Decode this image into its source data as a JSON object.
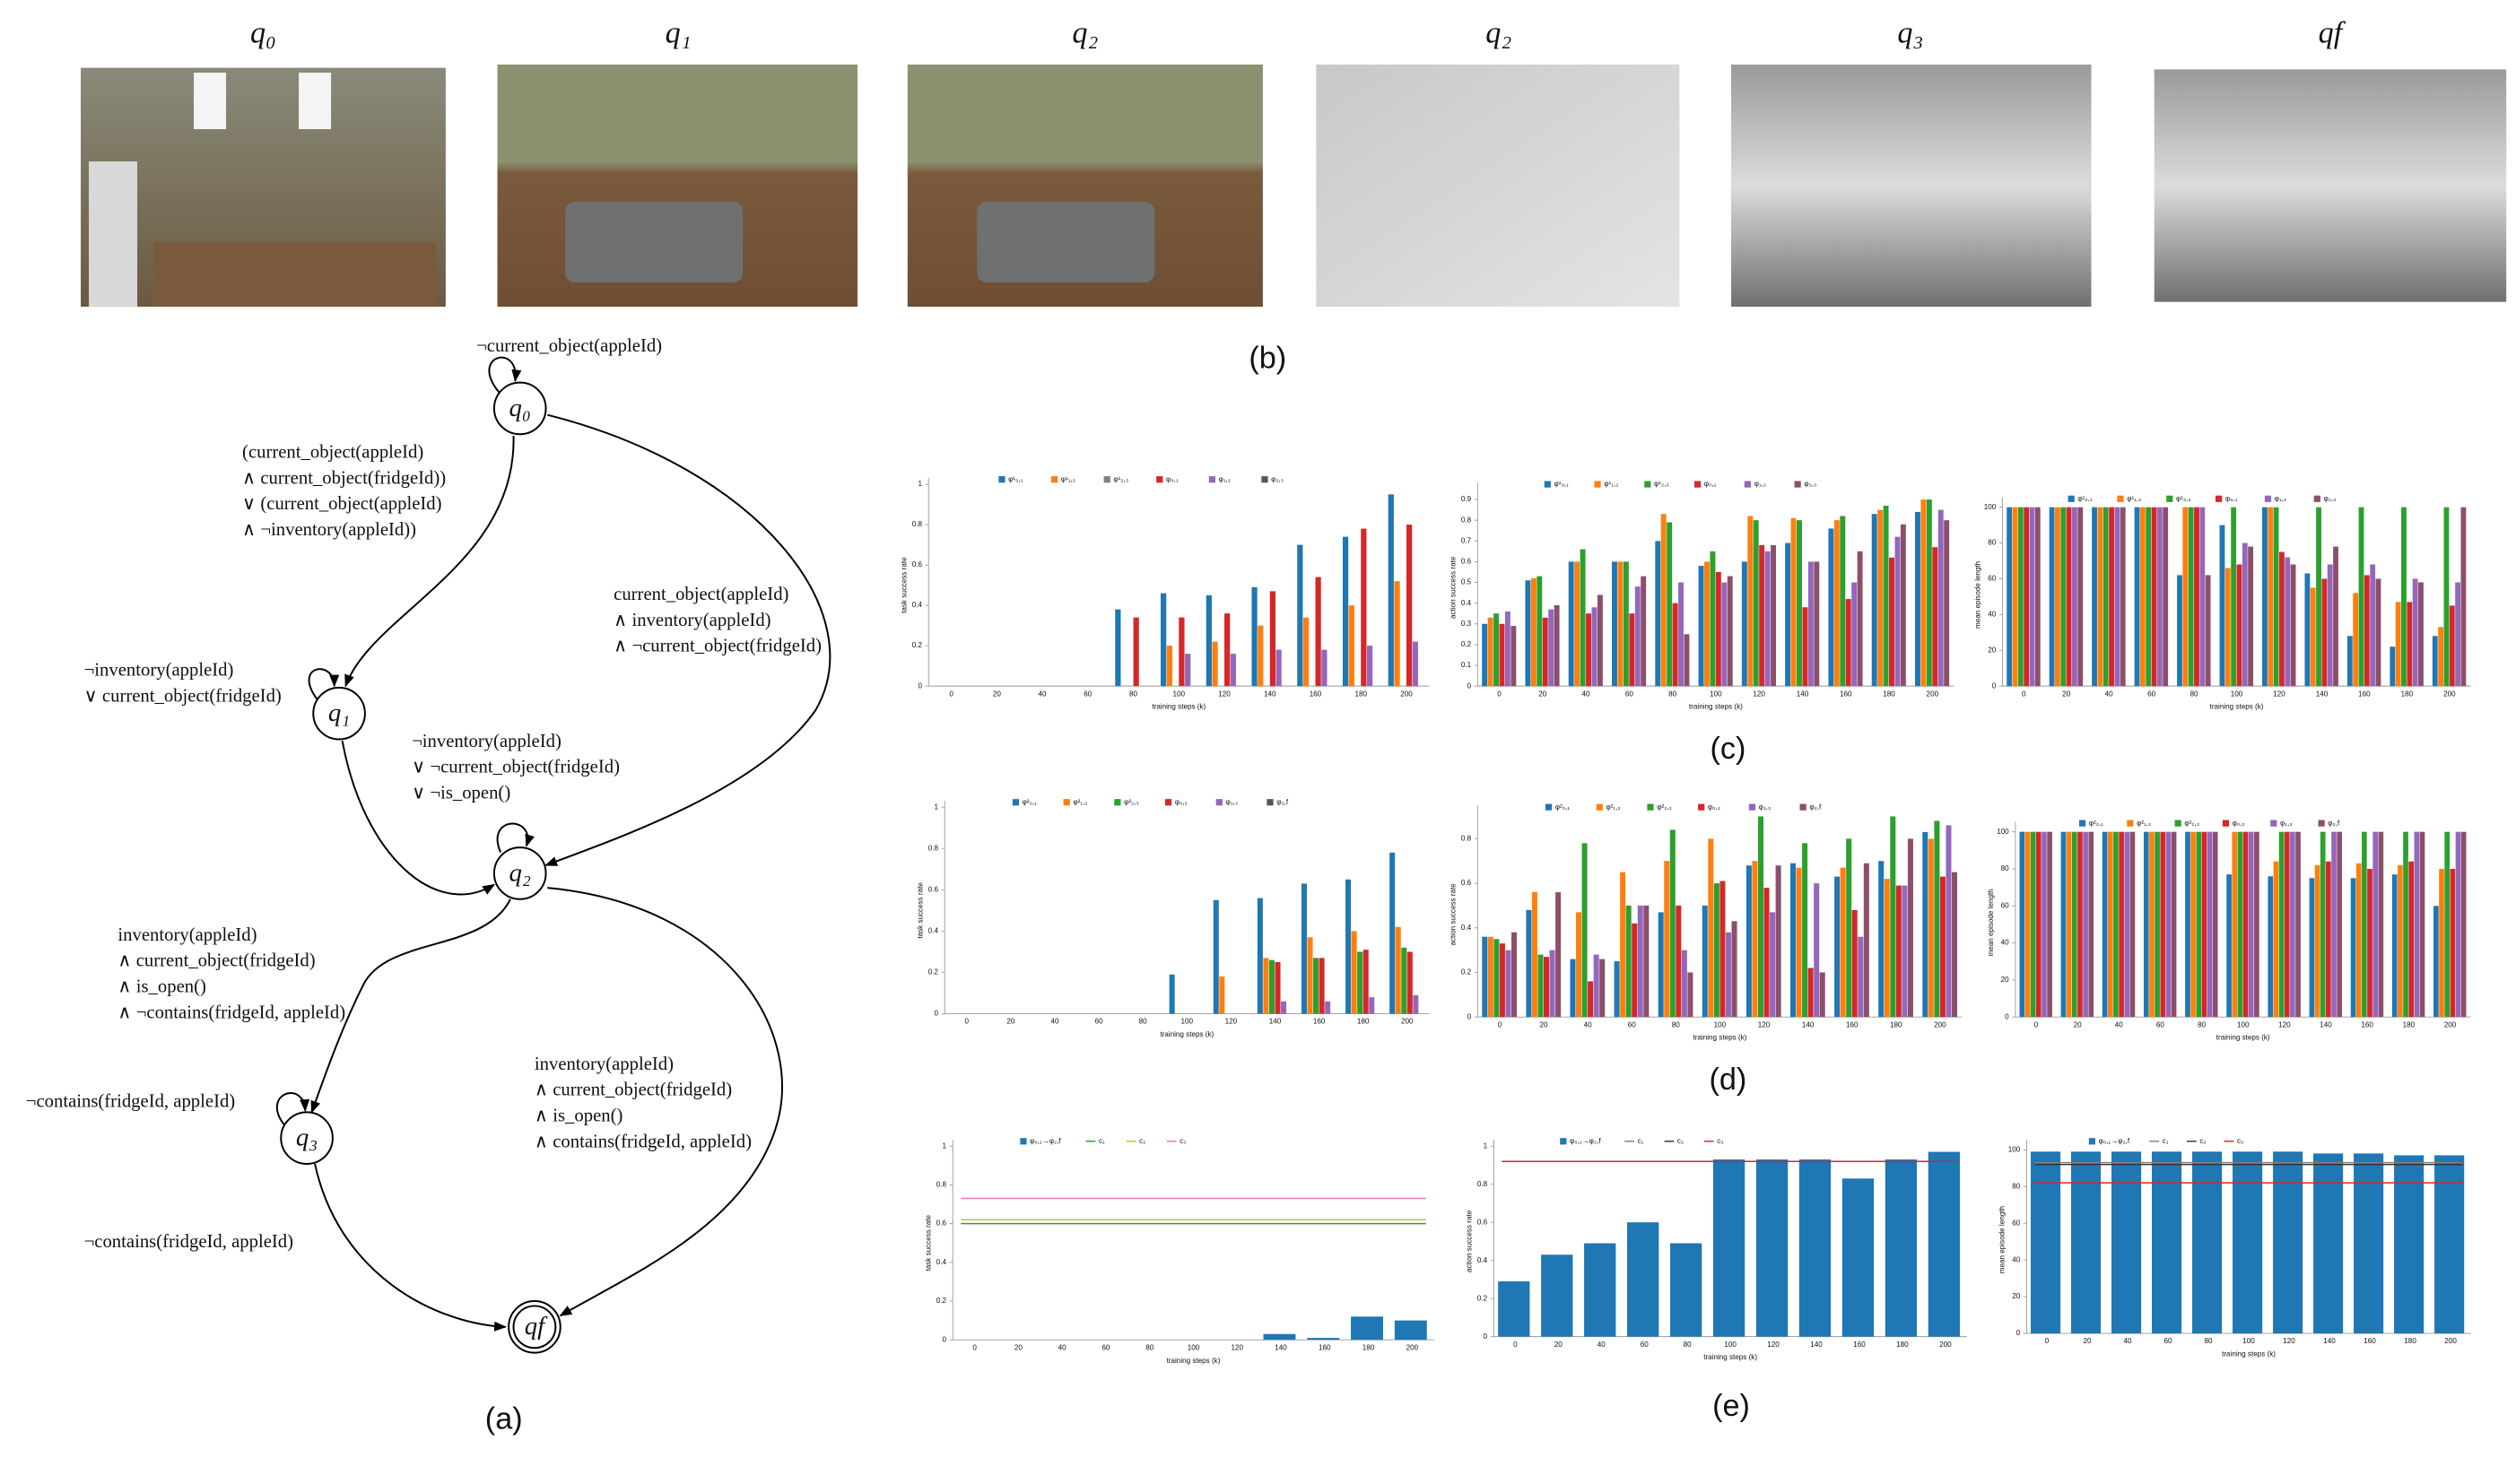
{
  "images": {
    "labels": [
      "q₀",
      "q₁",
      "q₂",
      "q₂",
      "q₃",
      "qf"
    ],
    "caption": "(b)"
  },
  "diagram": {
    "caption": "(a)",
    "nodes": [
      {
        "label": "q₀"
      },
      {
        "label": "q₁"
      },
      {
        "label": "q₂"
      },
      {
        "label": "q₃"
      },
      {
        "label": "qf"
      }
    ],
    "edges": [
      {
        "label": [
          "¬current_object(appleId)"
        ]
      },
      {
        "label": [
          "(current_object(appleId)",
          "∧ current_object(fridgeId))",
          "∨ (current_object(appleId)",
          "∧ ¬inventory(appleId))"
        ]
      },
      {
        "label": [
          "current_object(appleId)",
          "∧ inventory(appleId)",
          "∧ ¬current_object(fridgeId)"
        ]
      },
      {
        "label": [
          "¬inventory(appleId)",
          "∨ current_object(fridgeId)"
        ]
      },
      {
        "label": [
          "¬inventory(appleId)",
          "∨ ¬current_object(fridgeId)",
          "∨ ¬is_open()"
        ]
      },
      {
        "label": [
          "inventory(appleId)",
          "∧ current_object(fridgeId)",
          "∧ is_open()",
          "∧ ¬contains(fridgeId, appleId)"
        ]
      },
      {
        "label": [
          "¬contains(fridgeId, appleId)"
        ]
      },
      {
        "label": [
          "inventory(appleId)",
          "∧ current_object(fridgeId)",
          "∧ is_open()",
          "∧ contains(fridgeId, appleId)"
        ]
      },
      {
        "label": [
          "¬contains(fridgeId, appleId)"
        ]
      }
    ]
  },
  "captions": {
    "c": "(c)",
    "d": "(d)",
    "e": "(e)"
  },
  "chart_data": [
    {
      "type": "bar",
      "ylabel": "task success rate",
      "xlabel": "training steps (k)",
      "categories": [
        "0",
        "20",
        "40",
        "60",
        "80",
        "100",
        "120",
        "140",
        "160",
        "180",
        "200"
      ],
      "ylim": [
        0,
        1
      ],
      "yticks": [
        0,
        0.2,
        0.4,
        0.6,
        0.8,
        1
      ],
      "series": [
        {
          "name": "φ¹₀,₁",
          "color": "#1f77b4",
          "values": [
            0,
            0,
            0,
            0,
            0.38,
            0.46,
            0.45,
            0.49,
            0.7,
            0.74,
            0.95
          ]
        },
        {
          "name": "φ¹₁,₂",
          "color": "#ff7f0e",
          "values": [
            0,
            0,
            0,
            0,
            0,
            0.2,
            0.22,
            0.3,
            0.34,
            0.4,
            0.52
          ]
        },
        {
          "name": "φ¹₂,₃",
          "color": "#7f7f7f",
          "values": [
            0,
            0,
            0,
            0,
            0,
            0,
            0,
            0,
            0,
            0,
            0
          ]
        },
        {
          "name": "φ₀,₁",
          "color": "#d62728",
          "values": [
            0,
            0,
            0,
            0,
            0.34,
            0.34,
            0.36,
            0.47,
            0.54,
            0.78,
            0.8
          ]
        },
        {
          "name": "φ₁,₂",
          "color": "#9467bd",
          "values": [
            0,
            0,
            0,
            0,
            0,
            0.16,
            0.16,
            0.18,
            0.18,
            0.2,
            0.22
          ]
        },
        {
          "name": "φ₂,₃",
          "color": "#555555",
          "values": [
            0,
            0,
            0,
            0,
            0,
            0,
            0,
            0,
            0,
            0,
            0
          ]
        }
      ]
    },
    {
      "type": "bar",
      "ylabel": "action success rate",
      "xlabel": "training steps (k)",
      "categories": [
        "0",
        "20",
        "40",
        "60",
        "80",
        "100",
        "120",
        "140",
        "160",
        "180",
        "200"
      ],
      "ylim": [
        0,
        0.95
      ],
      "yticks": [
        0,
        0.1,
        0.2,
        0.3,
        0.4,
        0.5,
        0.6,
        0.7,
        0.8,
        0.9
      ],
      "series": [
        {
          "name": "φ¹₀,₁",
          "color": "#1f77b4",
          "values": [
            0.3,
            0.51,
            0.6,
            0.6,
            0.7,
            0.58,
            0.6,
            0.69,
            0.76,
            0.83,
            0.84
          ]
        },
        {
          "name": "φ¹₁,₂",
          "color": "#ff7f0e",
          "values": [
            0.33,
            0.52,
            0.6,
            0.6,
            0.83,
            0.6,
            0.82,
            0.81,
            0.8,
            0.85,
            0.9
          ]
        },
        {
          "name": "φ¹₂,₃",
          "color": "#2ca02c",
          "values": [
            0.35,
            0.53,
            0.66,
            0.6,
            0.79,
            0.65,
            0.8,
            0.8,
            0.82,
            0.87,
            0.9
          ]
        },
        {
          "name": "φ₀,₁",
          "color": "#d62728",
          "values": [
            0.3,
            0.33,
            0.35,
            0.35,
            0.4,
            0.55,
            0.68,
            0.38,
            0.42,
            0.62,
            0.67
          ]
        },
        {
          "name": "φ₁,₂",
          "color": "#9467bd",
          "values": [
            0.36,
            0.37,
            0.38,
            0.48,
            0.5,
            0.5,
            0.65,
            0.6,
            0.5,
            0.72,
            0.85
          ]
        },
        {
          "name": "φ₂,₃",
          "color": "#8c4f6b",
          "values": [
            0.29,
            0.39,
            0.44,
            0.53,
            0.25,
            0.53,
            0.68,
            0.6,
            0.65,
            0.78,
            0.8
          ]
        }
      ]
    },
    {
      "type": "bar",
      "ylabel": "mean episode length",
      "xlabel": "training steps (k)",
      "categories": [
        "0",
        "20",
        "40",
        "60",
        "80",
        "100",
        "120",
        "140",
        "160",
        "180",
        "200"
      ],
      "ylim": [
        0,
        102
      ],
      "yticks": [
        0,
        20,
        40,
        60,
        80,
        100
      ],
      "series": [
        {
          "name": "φ¹₀,₁",
          "color": "#1f77b4",
          "values": [
            100,
            100,
            100,
            100,
            62,
            90,
            100,
            63,
            28,
            22,
            28
          ]
        },
        {
          "name": "φ¹₁,₂",
          "color": "#ff7f0e",
          "values": [
            100,
            100,
            100,
            100,
            100,
            66,
            100,
            55,
            52,
            47,
            33
          ]
        },
        {
          "name": "φ¹₂,₃",
          "color": "#2ca02c",
          "values": [
            100,
            100,
            100,
            100,
            100,
            100,
            100,
            100,
            100,
            100,
            100
          ]
        },
        {
          "name": "φ₀,₁",
          "color": "#d62728",
          "values": [
            100,
            100,
            100,
            100,
            100,
            68,
            75,
            60,
            62,
            47,
            45
          ]
        },
        {
          "name": "φ₁,₂",
          "color": "#9467bd",
          "values": [
            100,
            100,
            100,
            100,
            100,
            80,
            72,
            68,
            68,
            60,
            58
          ]
        },
        {
          "name": "φ₂,₃",
          "color": "#8c4f6b",
          "values": [
            100,
            100,
            100,
            100,
            62,
            78,
            68,
            78,
            60,
            58,
            100
          ]
        }
      ]
    },
    {
      "type": "bar",
      "ylabel": "task success rate",
      "xlabel": "training steps (k)",
      "categories": [
        "0",
        "20",
        "40",
        "60",
        "80",
        "100",
        "120",
        "140",
        "160",
        "180",
        "200"
      ],
      "ylim": [
        0,
        1
      ],
      "yticks": [
        0,
        0.2,
        0.4,
        0.6,
        0.8,
        1
      ],
      "series": [
        {
          "name": "φ²₀,₁",
          "color": "#1f77b4",
          "values": [
            0,
            0,
            0,
            0,
            0,
            0.19,
            0.55,
            0.56,
            0.63,
            0.65,
            0.78
          ]
        },
        {
          "name": "φ²₁,₂",
          "color": "#ff7f0e",
          "values": [
            0,
            0,
            0,
            0,
            0,
            0,
            0.18,
            0.27,
            0.37,
            0.4,
            0.42
          ]
        },
        {
          "name": "φ²₂,₃",
          "color": "#2ca02c",
          "values": [
            0,
            0,
            0,
            0,
            0,
            0,
            0,
            0.26,
            0.27,
            0.3,
            0.32
          ]
        },
        {
          "name": "φ₀,₂",
          "color": "#d62728",
          "values": [
            0,
            0,
            0,
            0,
            0,
            0,
            0,
            0.25,
            0.27,
            0.31,
            0.3
          ]
        },
        {
          "name": "φ₁,₃",
          "color": "#9467bd",
          "values": [
            0,
            0,
            0,
            0,
            0,
            0,
            0,
            0.06,
            0.06,
            0.08,
            0.09
          ]
        },
        {
          "name": "φ₂,f",
          "color": "#555555",
          "values": [
            0,
            0,
            0,
            0,
            0,
            0,
            0,
            0,
            0,
            0,
            0
          ]
        }
      ]
    },
    {
      "type": "bar",
      "ylabel": "action success rate",
      "xlabel": "training steps (k)",
      "categories": [
        "0",
        "20",
        "40",
        "60",
        "80",
        "100",
        "120",
        "140",
        "160",
        "180",
        "200"
      ],
      "ylim": [
        0,
        0.92
      ],
      "yticks": [
        0,
        0.2,
        0.4,
        0.6,
        0.8
      ],
      "series": [
        {
          "name": "φ²₀,₁",
          "color": "#1f77b4",
          "values": [
            0.36,
            0.48,
            0.26,
            0.25,
            0.47,
            0.5,
            0.68,
            0.69,
            0.63,
            0.7,
            0.83
          ]
        },
        {
          "name": "φ²₁,₂",
          "color": "#ff7f0e",
          "values": [
            0.36,
            0.56,
            0.47,
            0.65,
            0.7,
            0.8,
            0.7,
            0.67,
            0.67,
            0.62,
            0.8
          ]
        },
        {
          "name": "φ²₂,₃",
          "color": "#2ca02c",
          "values": [
            0.35,
            0.28,
            0.78,
            0.5,
            0.84,
            0.6,
            0.9,
            0.78,
            0.8,
            0.9,
            0.88
          ]
        },
        {
          "name": "φ₀,₂",
          "color": "#d62728",
          "values": [
            0.33,
            0.27,
            0.16,
            0.42,
            0.5,
            0.61,
            0.58,
            0.22,
            0.48,
            0.59,
            0.63
          ]
        },
        {
          "name": "φ₁,₃",
          "color": "#9467bd",
          "values": [
            0.3,
            0.3,
            0.28,
            0.5,
            0.3,
            0.38,
            0.47,
            0.6,
            0.36,
            0.59,
            0.86
          ]
        },
        {
          "name": "φ₂,f",
          "color": "#8c4f6b",
          "values": [
            0.38,
            0.56,
            0.26,
            0.5,
            0.2,
            0.43,
            0.68,
            0.2,
            0.69,
            0.8,
            0.65
          ]
        }
      ]
    },
    {
      "type": "bar",
      "ylabel": "mean episode length",
      "xlabel": "training steps (k)",
      "categories": [
        "0",
        "20",
        "40",
        "60",
        "80",
        "100",
        "120",
        "140",
        "160",
        "180",
        "200"
      ],
      "ylim": [
        0,
        102
      ],
      "yticks": [
        0,
        20,
        40,
        60,
        80,
        100
      ],
      "series": [
        {
          "name": "φ²₀,₁",
          "color": "#1f77b4",
          "values": [
            100,
            100,
            100,
            100,
            100,
            77,
            76,
            75,
            75,
            77,
            60
          ]
        },
        {
          "name": "φ²₁,₂",
          "color": "#ff7f0e",
          "values": [
            100,
            100,
            100,
            100,
            100,
            100,
            84,
            82,
            83,
            82,
            80
          ]
        },
        {
          "name": "φ²₂,₃",
          "color": "#2ca02c",
          "values": [
            100,
            100,
            100,
            100,
            100,
            100,
            100,
            100,
            100,
            100,
            100
          ]
        },
        {
          "name": "φ₀,₂",
          "color": "#d62728",
          "values": [
            100,
            100,
            100,
            100,
            100,
            100,
            100,
            84,
            80,
            84,
            80
          ]
        },
        {
          "name": "φ₁,₃",
          "color": "#9467bd",
          "values": [
            100,
            100,
            100,
            100,
            100,
            100,
            100,
            100,
            100,
            100,
            100
          ]
        },
        {
          "name": "φ₂,f",
          "color": "#8c4f6b",
          "values": [
            100,
            100,
            100,
            100,
            100,
            100,
            100,
            100,
            100,
            100,
            100
          ]
        }
      ]
    },
    {
      "type": "bar",
      "ylabel": "task success rate",
      "xlabel": "training steps (k)",
      "categories": [
        "0",
        "20",
        "40",
        "60",
        "80",
        "100",
        "120",
        "140",
        "160",
        "180",
        "200"
      ],
      "ylim": [
        0,
        1
      ],
      "yticks": [
        0,
        0.2,
        0.4,
        0.6,
        0.8,
        1
      ],
      "series": [
        {
          "name": "φ₀,₁→φ₂,f",
          "color": "#1f77b4",
          "values": [
            0,
            0,
            0,
            0,
            0,
            0,
            0,
            0.03,
            0.01,
            0.12,
            0.1
          ]
        }
      ],
      "reference_lines": [
        {
          "name": "c₁",
          "color": "#2ca02c",
          "value": 0.6
        },
        {
          "name": "c₂",
          "color": "#bcbd22",
          "value": 0.62
        },
        {
          "name": "c₃",
          "color": "#e377c2",
          "value": 0.73
        }
      ]
    },
    {
      "type": "bar",
      "ylabel": "action success rate",
      "xlabel": "training steps (k)",
      "categories": [
        "0",
        "20",
        "40",
        "60",
        "80",
        "100",
        "120",
        "140",
        "160",
        "180",
        "200"
      ],
      "ylim": [
        0,
        1
      ],
      "yticks": [
        0,
        0.2,
        0.4,
        0.6,
        0.8,
        1
      ],
      "series": [
        {
          "name": "φ₀,₁→φ₂,f",
          "color": "#1f77b4",
          "values": [
            0.29,
            0.43,
            0.49,
            0.6,
            0.49,
            0.93,
            0.93,
            0.93,
            0.83,
            0.93,
            0.97
          ]
        }
      ],
      "reference_lines": [
        {
          "name": "c₁",
          "color": "#7f7f7f",
          "value": 0.92
        },
        {
          "name": "c₂",
          "color": "#333333",
          "value": 0.92
        },
        {
          "name": "c₃",
          "color": "#d62728",
          "value": 0.92
        }
      ]
    },
    {
      "type": "bar",
      "ylabel": "mean episode length",
      "xlabel": "training steps (k)",
      "categories": [
        "0",
        "20",
        "40",
        "60",
        "80",
        "100",
        "120",
        "140",
        "160",
        "180",
        "200"
      ],
      "ylim": [
        0,
        102
      ],
      "yticks": [
        0,
        20,
        40,
        60,
        80,
        100
      ],
      "series": [
        {
          "name": "φ₀,₁→φ₂,f",
          "color": "#1f77b4",
          "values": [
            99,
            99,
            99,
            99,
            99,
            99,
            99,
            98,
            98,
            97,
            97
          ]
        }
      ],
      "reference_lines": [
        {
          "name": "c₁",
          "color": "#7f7f7f",
          "value": 93
        },
        {
          "name": "c₂",
          "color": "#333333",
          "value": 92
        },
        {
          "name": "c₃",
          "color": "#d62728",
          "value": 82
        }
      ]
    }
  ]
}
